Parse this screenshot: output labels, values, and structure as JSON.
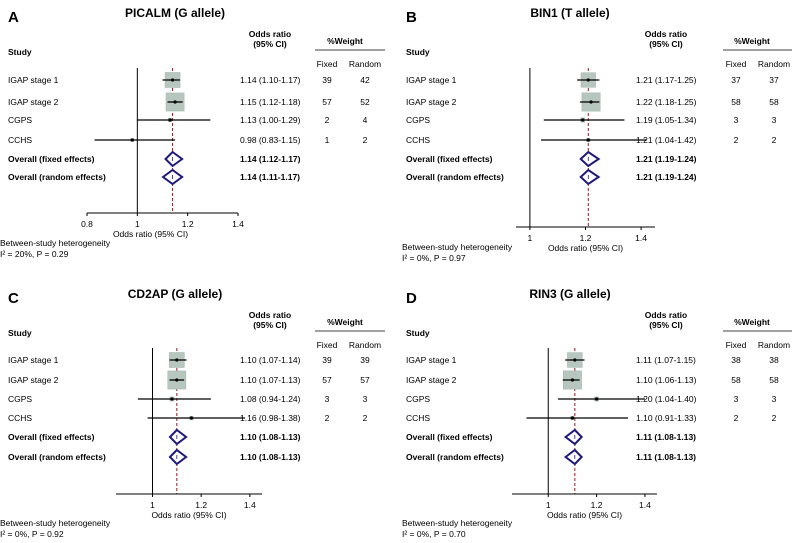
{
  "chart_data": [
    {
      "type": "forest",
      "letter": "A",
      "title": "PICALM (G allele)",
      "xlabel": "Odds ratio (95% CI)",
      "xlim": [
        0.8,
        1.4
      ],
      "xticks": [
        "0.8",
        "1",
        "1.2",
        "1.4"
      ],
      "reference_or": 1.14,
      "headers": {
        "study": "Study",
        "or_line1": "Odds ratio",
        "or_line2": "(95% CI)",
        "weight": "%Weight",
        "fixed": "Fixed",
        "random": "Random"
      },
      "rows": [
        {
          "study": "IGAP stage 1",
          "or": 1.14,
          "lo": 1.1,
          "hi": 1.17,
          "ci_text": "1.14 (1.10-1.17)",
          "fixed": "39",
          "random": "42",
          "kind": "study"
        },
        {
          "study": "IGAP stage 2",
          "or": 1.15,
          "lo": 1.12,
          "hi": 1.18,
          "ci_text": "1.15 (1.12-1.18)",
          "fixed": "57",
          "random": "52",
          "kind": "study"
        },
        {
          "study": "CGPS",
          "or": 1.13,
          "lo": 1.0,
          "hi": 1.29,
          "ci_text": "1.13 (1.00-1.29)",
          "fixed": "2",
          "random": "4",
          "kind": "study"
        },
        {
          "study": "CCHS",
          "or": 0.98,
          "lo": 0.83,
          "hi": 1.15,
          "ci_text": "0.98 (0.83-1.15)",
          "fixed": "1",
          "random": "2",
          "kind": "study"
        },
        {
          "study": "Overall (fixed effects)",
          "or": 1.14,
          "lo": 1.12,
          "hi": 1.17,
          "ci_text": "1.14 (1.12-1.17)",
          "fixed": "",
          "random": "",
          "kind": "overall"
        },
        {
          "study": "Overall (random effects)",
          "or": 1.14,
          "lo": 1.11,
          "hi": 1.17,
          "ci_text": "1.14 (1.11-1.17)",
          "fixed": "",
          "random": "",
          "kind": "overall"
        }
      ],
      "heterogeneity": {
        "line1": "Between-study heterogeneity",
        "line2": "I² = 20%, P = 0.29"
      }
    },
    {
      "type": "forest",
      "letter": "B",
      "title": "BIN1 (T allele)",
      "xlabel": "Odds ratio (95% CI)",
      "xlim": [
        0.95,
        1.45
      ],
      "xticks": [
        "1",
        "1.2",
        "1.4"
      ],
      "reference_or": 1.21,
      "headers": {
        "study": "Study",
        "or_line1": "Odds ratio",
        "or_line2": "(95% CI)",
        "weight": "%Weight",
        "fixed": "Fixed",
        "random": "Random"
      },
      "rows": [
        {
          "study": "IGAP stage 1",
          "or": 1.21,
          "lo": 1.17,
          "hi": 1.25,
          "ci_text": "1.21 (1.17-1.25)",
          "fixed": "37",
          "random": "37",
          "kind": "study"
        },
        {
          "study": "IGAP stage 2",
          "or": 1.22,
          "lo": 1.18,
          "hi": 1.25,
          "ci_text": "1.22 (1.18-1.25)",
          "fixed": "58",
          "random": "58",
          "kind": "study"
        },
        {
          "study": "CGPS",
          "or": 1.19,
          "lo": 1.05,
          "hi": 1.34,
          "ci_text": "1.19 (1.05-1.34)",
          "fixed": "3",
          "random": "3",
          "kind": "study"
        },
        {
          "study": "CCHS",
          "or": 1.21,
          "lo": 1.04,
          "hi": 1.42,
          "ci_text": "1.21 (1.04-1.42)",
          "fixed": "2",
          "random": "2",
          "kind": "study"
        },
        {
          "study": "Overall (fixed effects)",
          "or": 1.21,
          "lo": 1.19,
          "hi": 1.24,
          "ci_text": "1.21 (1.19-1.24)",
          "fixed": "",
          "random": "",
          "kind": "overall"
        },
        {
          "study": "Overall (random effects)",
          "or": 1.21,
          "lo": 1.19,
          "hi": 1.24,
          "ci_text": "1.21 (1.19-1.24)",
          "fixed": "",
          "random": "",
          "kind": "overall"
        }
      ],
      "heterogeneity": {
        "line1": "Between-study heterogeneity",
        "line2": "I² = 0%, P = 0.97"
      }
    },
    {
      "type": "forest",
      "letter": "C",
      "title": "CD2AP (G allele)",
      "xlabel": "Odds ratio (95% CI)",
      "xlim": [
        0.85,
        1.45
      ],
      "xticks": [
        "1",
        "1.2",
        "1.4"
      ],
      "reference_or": 1.1,
      "headers": {
        "study": "Study",
        "or_line1": "Odds ratio",
        "or_line2": "(95% CI)",
        "weight": "%Weight",
        "fixed": "Fixed",
        "random": "Random"
      },
      "rows": [
        {
          "study": "IGAP stage 1",
          "or": 1.1,
          "lo": 1.07,
          "hi": 1.14,
          "ci_text": "1.10 (1.07-1.14)",
          "fixed": "39",
          "random": "39",
          "kind": "study"
        },
        {
          "study": "IGAP stage 2",
          "or": 1.1,
          "lo": 1.07,
          "hi": 1.13,
          "ci_text": "1.10 (1.07-1.13)",
          "fixed": "57",
          "random": "57",
          "kind": "study"
        },
        {
          "study": "CGPS",
          "or": 1.08,
          "lo": 0.94,
          "hi": 1.24,
          "ci_text": "1.08 (0.94-1.24)",
          "fixed": "3",
          "random": "3",
          "kind": "study"
        },
        {
          "study": "CCHS",
          "or": 1.16,
          "lo": 0.98,
          "hi": 1.38,
          "ci_text": "1.16 (0.98-1.38)",
          "fixed": "2",
          "random": "2",
          "kind": "study"
        },
        {
          "study": "Overall (fixed effects)",
          "or": 1.1,
          "lo": 1.08,
          "hi": 1.13,
          "ci_text": "1.10 (1.08-1.13)",
          "fixed": "",
          "random": "",
          "kind": "overall"
        },
        {
          "study": "Overall (random effects)",
          "or": 1.1,
          "lo": 1.08,
          "hi": 1.13,
          "ci_text": "1.10 (1.08-1.13)",
          "fixed": "",
          "random": "",
          "kind": "overall"
        }
      ],
      "heterogeneity": {
        "line1": "Between-study heterogeneity",
        "line2": "I² = 0%, P = 0.92"
      }
    },
    {
      "type": "forest",
      "letter": "D",
      "title": "RIN3 (G allele)",
      "xlabel": "Odds ratio (95% CI)",
      "xlim": [
        0.85,
        1.45
      ],
      "xticks": [
        "1",
        "1.2",
        "1.4"
      ],
      "reference_or": 1.11,
      "headers": {
        "study": "Study",
        "or_line1": "Odds ratio",
        "or_line2": "(95% CI)",
        "weight": "%Weight",
        "fixed": "Fixed",
        "random": "Random"
      },
      "rows": [
        {
          "study": "IGAP stage 1",
          "or": 1.11,
          "lo": 1.07,
          "hi": 1.15,
          "ci_text": "1.11 (1.07-1.15)",
          "fixed": "38",
          "random": "38",
          "kind": "study"
        },
        {
          "study": "IGAP stage 2",
          "or": 1.1,
          "lo": 1.06,
          "hi": 1.13,
          "ci_text": "1.10 (1.06-1.13)",
          "fixed": "58",
          "random": "58",
          "kind": "study"
        },
        {
          "study": "CGPS",
          "or": 1.2,
          "lo": 1.04,
          "hi": 1.4,
          "ci_text": "1.20 (1.04-1.40)",
          "fixed": "3",
          "random": "3",
          "kind": "study"
        },
        {
          "study": "CCHS",
          "or": 1.1,
          "lo": 0.91,
          "hi": 1.33,
          "ci_text": "1.10 (0.91-1.33)",
          "fixed": "2",
          "random": "2",
          "kind": "study"
        },
        {
          "study": "Overall (fixed effects)",
          "or": 1.11,
          "lo": 1.08,
          "hi": 1.13,
          "ci_text": "1.11 (1.08-1.13)",
          "fixed": "",
          "random": "",
          "kind": "overall"
        },
        {
          "study": "Overall (random effects)",
          "or": 1.11,
          "lo": 1.08,
          "hi": 1.13,
          "ci_text": "1.11 (1.08-1.13)",
          "fixed": "",
          "random": "",
          "kind": "overall"
        }
      ],
      "heterogeneity": {
        "line1": "Between-study heterogeneity",
        "line2": "I² = 0%, P = 0.70"
      }
    }
  ],
  "colors": {
    "box": "#b7c7c0",
    "box_stroke": "#9fb2aa",
    "diamond": "#1f1a7a",
    "ref_line": "#a01020",
    "axis": "#000000"
  }
}
